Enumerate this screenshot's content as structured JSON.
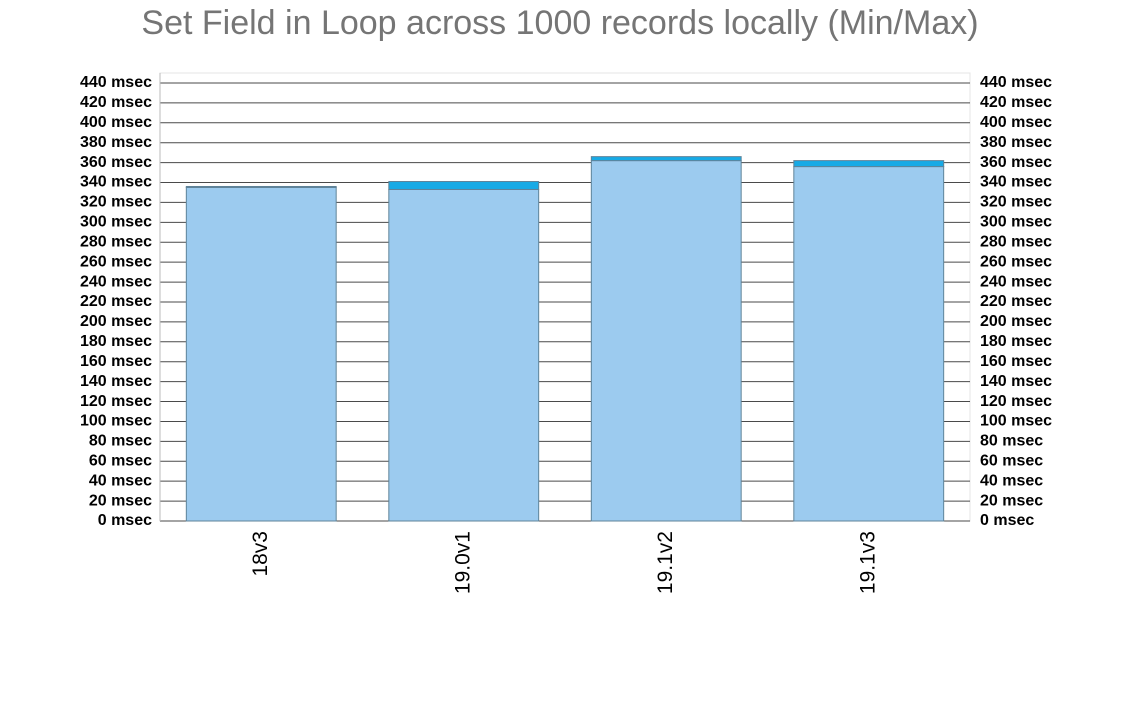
{
  "chart_data": {
    "type": "bar",
    "stacked": true,
    "title": "Set Field in Loop across 1000 records locally (Min/Max)",
    "categories": [
      "18v3",
      "19.0v1",
      "19.1v2",
      "19.1v3"
    ],
    "series": [
      {
        "color": "#9ccbef",
        "values": [
          335,
          333,
          362,
          356
        ]
      },
      {
        "color": "#17aae6",
        "values": [
          1,
          8,
          4,
          6
        ]
      }
    ],
    "ylim": [
      0,
      450
    ],
    "yticks": [
      {
        "value": 0,
        "label": "0 msec"
      },
      {
        "value": 20,
        "label": "20 msec"
      },
      {
        "value": 40,
        "label": "40 msec"
      },
      {
        "value": 60,
        "label": "60 msec"
      },
      {
        "value": 80,
        "label": "80 msec"
      },
      {
        "value": 100,
        "label": "100 msec"
      },
      {
        "value": 120,
        "label": "120 msec"
      },
      {
        "value": 140,
        "label": "140 msec"
      },
      {
        "value": 160,
        "label": "160 msec"
      },
      {
        "value": 180,
        "label": "180 msec"
      },
      {
        "value": 200,
        "label": "200 msec"
      },
      {
        "value": 220,
        "label": "220 msec"
      },
      {
        "value": 240,
        "label": "240 msec"
      },
      {
        "value": 260,
        "label": "260 msec"
      },
      {
        "value": 280,
        "label": "280 msec"
      },
      {
        "value": 300,
        "label": "300 msec"
      },
      {
        "value": 320,
        "label": "320 msec"
      },
      {
        "value": 340,
        "label": "340 msec"
      },
      {
        "value": 360,
        "label": "360 msec"
      },
      {
        "value": 380,
        "label": "380 msec"
      },
      {
        "value": 400,
        "label": "400 msec"
      },
      {
        "value": 420,
        "label": "420 msec"
      },
      {
        "value": 440,
        "label": "440 msec"
      }
    ],
    "grid": true
  }
}
